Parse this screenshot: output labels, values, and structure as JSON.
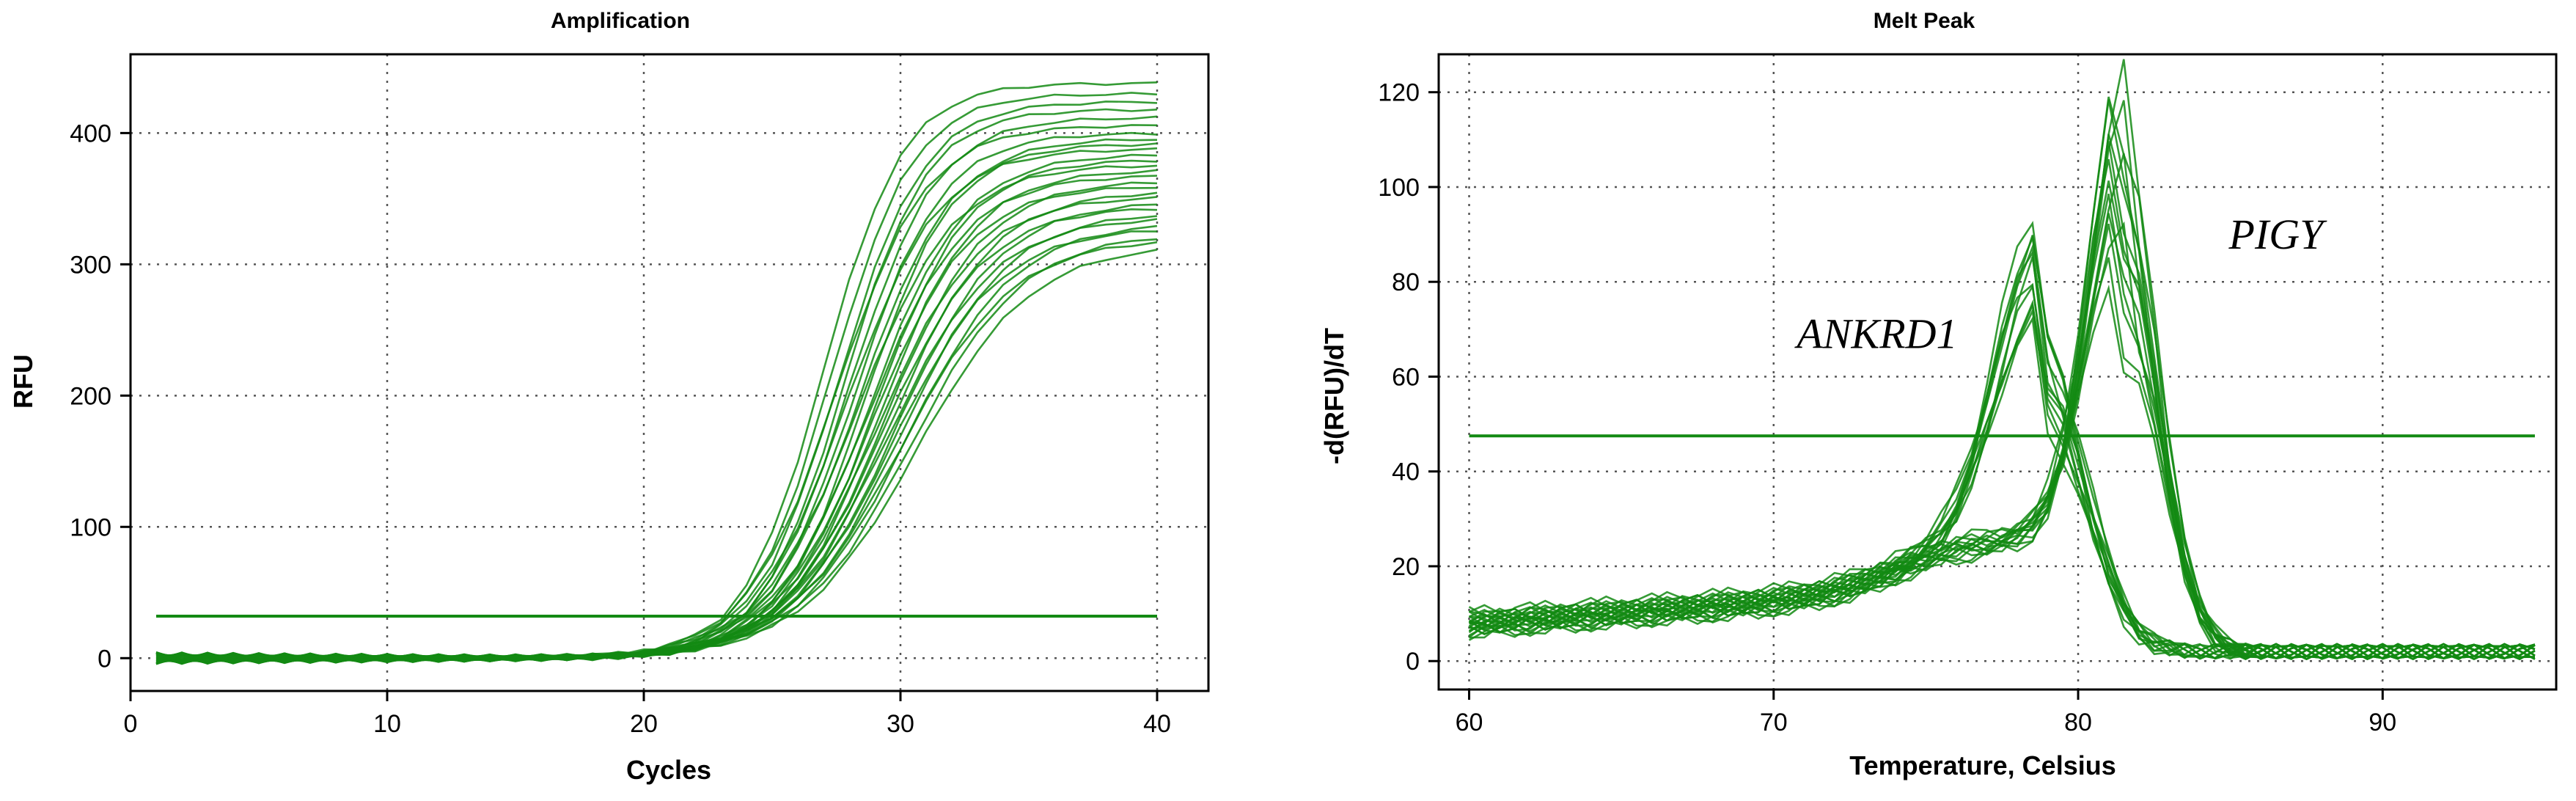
{
  "chart_data": [
    {
      "id": "amplification",
      "type": "line",
      "title": "Amplification",
      "xlabel": "Cycles",
      "ylabel": "RFU",
      "xlim": [
        0,
        42
      ],
      "ylim": [
        -25,
        460
      ],
      "xticks": [
        0,
        10,
        20,
        30,
        40
      ],
      "yticks": [
        0,
        100,
        200,
        300,
        400
      ],
      "grid": true,
      "line_color": "#138a13",
      "threshold": 32,
      "x": [
        1,
        2,
        3,
        4,
        5,
        6,
        7,
        8,
        9,
        10,
        11,
        12,
        13,
        14,
        15,
        16,
        17,
        18,
        19,
        20,
        21,
        22,
        23,
        24,
        25,
        26,
        27,
        28,
        29,
        30,
        31,
        32,
        33,
        34,
        35,
        36,
        37,
        38,
        39,
        40
      ],
      "series": [
        {
          "plateau": 438,
          "midpoint": 27.0,
          "slope": 1.55
        },
        {
          "plateau": 430,
          "midpoint": 27.3,
          "slope": 1.6
        },
        {
          "plateau": 424,
          "midpoint": 27.6,
          "slope": 1.65
        },
        {
          "plateau": 418,
          "midpoint": 27.8,
          "slope": 1.6
        },
        {
          "plateau": 412,
          "midpoint": 28.0,
          "slope": 1.7
        },
        {
          "plateau": 406,
          "midpoint": 27.5,
          "slope": 1.75
        },
        {
          "plateau": 400,
          "midpoint": 28.2,
          "slope": 1.7
        },
        {
          "plateau": 396,
          "midpoint": 28.4,
          "slope": 1.8
        },
        {
          "plateau": 392,
          "midpoint": 28.6,
          "slope": 1.7
        },
        {
          "plateau": 388,
          "midpoint": 27.9,
          "slope": 1.8
        },
        {
          "plateau": 384,
          "midpoint": 28.8,
          "slope": 1.85
        },
        {
          "plateau": 380,
          "midpoint": 29.0,
          "slope": 1.8
        },
        {
          "plateau": 376,
          "midpoint": 28.3,
          "slope": 1.9
        },
        {
          "plateau": 372,
          "midpoint": 29.2,
          "slope": 1.85
        },
        {
          "plateau": 368,
          "midpoint": 28.7,
          "slope": 1.9
        },
        {
          "plateau": 364,
          "midpoint": 29.4,
          "slope": 1.95
        },
        {
          "plateau": 360,
          "midpoint": 28.9,
          "slope": 1.9
        },
        {
          "plateau": 356,
          "midpoint": 29.6,
          "slope": 2.0
        },
        {
          "plateau": 352,
          "midpoint": 29.1,
          "slope": 2.0
        },
        {
          "plateau": 348,
          "midpoint": 29.8,
          "slope": 2.05
        },
        {
          "plateau": 344,
          "midpoint": 29.3,
          "slope": 2.0
        },
        {
          "plateau": 340,
          "midpoint": 30.0,
          "slope": 2.1
        },
        {
          "plateau": 336,
          "midpoint": 29.5,
          "slope": 2.1
        },
        {
          "plateau": 332,
          "midpoint": 30.2,
          "slope": 2.15
        },
        {
          "plateau": 328,
          "midpoint": 29.7,
          "slope": 2.1
        },
        {
          "plateau": 324,
          "midpoint": 30.4,
          "slope": 2.2
        },
        {
          "plateau": 320,
          "midpoint": 30.0,
          "slope": 2.2
        },
        {
          "plateau": 315,
          "midpoint": 30.6,
          "slope": 2.25
        }
      ]
    },
    {
      "id": "melt-peak",
      "type": "line",
      "title": "Melt Peak",
      "xlabel": "Temperature, Celsius",
      "ylabel": "-d(RFU)/dT",
      "xlim": [
        59,
        95.7
      ],
      "ylim": [
        -6,
        128
      ],
      "xticks": [
        60,
        70,
        80,
        90
      ],
      "yticks": [
        0,
        20,
        40,
        60,
        80,
        100,
        120
      ],
      "grid": true,
      "line_color": "#138a13",
      "threshold": 47.5,
      "x_start": 60,
      "x_end": 95,
      "x_step": 0.5,
      "annotations": [
        {
          "text": "ANKRD1",
          "x": 73.4,
          "y": 66
        },
        {
          "text": "PIGY",
          "x": 86.5,
          "y": 87
        }
      ],
      "series": [
        {
          "peak_temp": 78.6,
          "peak": 88,
          "base": 8,
          "width": 1.9
        },
        {
          "peak_temp": 78.7,
          "peak": 86,
          "base": 7,
          "width": 1.95
        },
        {
          "peak_temp": 78.8,
          "peak": 84,
          "base": 9,
          "width": 2.0
        },
        {
          "peak_temp": 78.6,
          "peak": 82,
          "base": 6,
          "width": 1.9
        },
        {
          "peak_temp": 78.9,
          "peak": 80,
          "base": 8,
          "width": 2.0
        },
        {
          "peak_temp": 78.7,
          "peak": 78,
          "base": 10,
          "width": 2.05
        },
        {
          "peak_temp": 78.8,
          "peak": 76,
          "base": 7,
          "width": 2.0
        },
        {
          "peak_temp": 78.6,
          "peak": 74,
          "base": 9,
          "width": 2.1
        },
        {
          "peak_temp": 78.9,
          "peak": 72,
          "base": 8,
          "width": 2.05
        },
        {
          "peak_temp": 78.7,
          "peak": 70,
          "base": 6,
          "width": 2.1
        },
        {
          "peak_temp": 78.8,
          "peak": 68,
          "base": 9,
          "width": 2.15
        },
        {
          "peak_temp": 78.7,
          "peak": 66,
          "base": 7,
          "width": 2.1
        },
        {
          "peak_temp": 81.5,
          "peak": 124,
          "base": 8,
          "width": 1.5
        },
        {
          "peak_temp": 81.6,
          "peak": 120,
          "base": 7,
          "width": 1.55
        },
        {
          "peak_temp": 81.4,
          "peak": 117,
          "base": 9,
          "width": 1.5
        },
        {
          "peak_temp": 81.5,
          "peak": 114,
          "base": 6,
          "width": 1.55
        },
        {
          "peak_temp": 81.6,
          "peak": 111,
          "base": 8,
          "width": 1.6
        },
        {
          "peak_temp": 81.5,
          "peak": 108,
          "base": 10,
          "width": 1.55
        },
        {
          "peak_temp": 81.4,
          "peak": 105,
          "base": 7,
          "width": 1.6
        },
        {
          "peak_temp": 81.5,
          "peak": 102,
          "base": 9,
          "width": 1.6
        },
        {
          "peak_temp": 81.6,
          "peak": 99,
          "base": 8,
          "width": 1.65
        },
        {
          "peak_temp": 81.5,
          "peak": 96,
          "base": 6,
          "width": 1.65
        },
        {
          "peak_temp": 81.4,
          "peak": 93,
          "base": 9,
          "width": 1.7
        },
        {
          "peak_temp": 81.5,
          "peak": 90,
          "base": 7,
          "width": 1.7
        },
        {
          "peak_temp": 81.6,
          "peak": 86,
          "base": 8,
          "width": 1.75
        },
        {
          "peak_temp": 81.5,
          "peak": 82,
          "base": 9,
          "width": 1.75
        },
        {
          "peak_temp": 81.5,
          "peak": 78,
          "base": 7,
          "width": 1.8
        }
      ]
    }
  ]
}
